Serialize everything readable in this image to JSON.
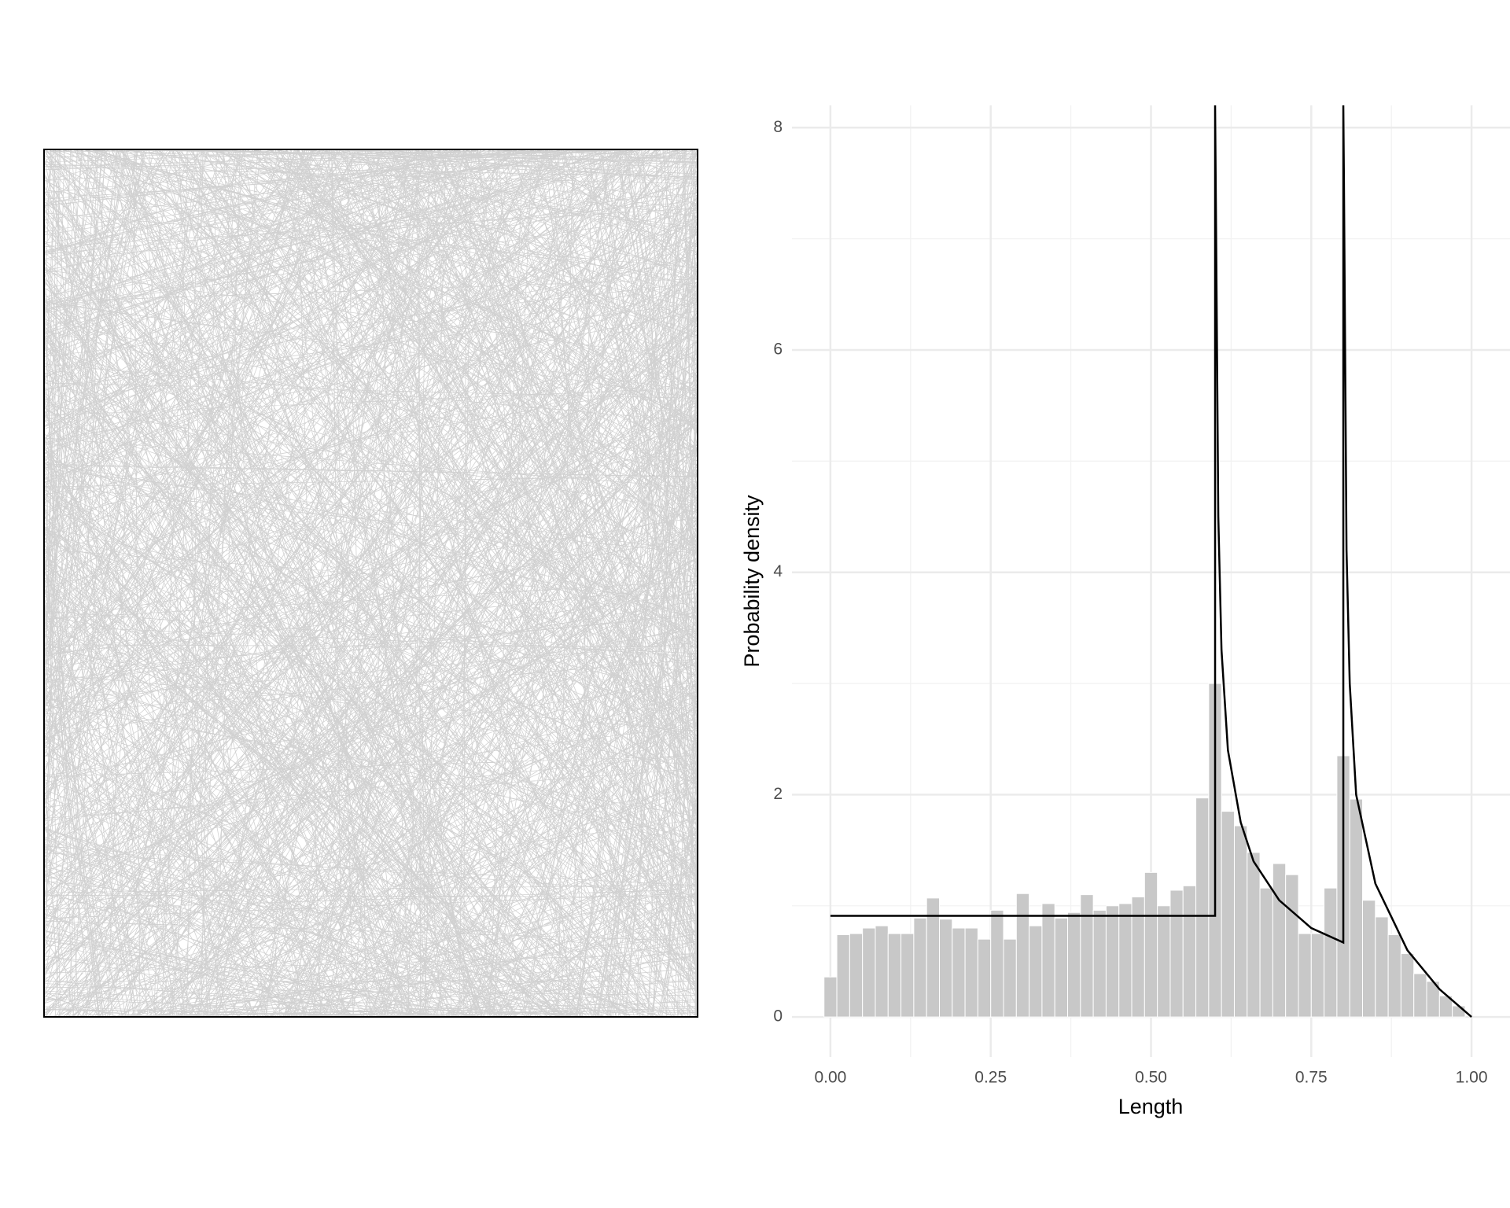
{
  "chart_data": {
    "type": "histogram",
    "xlabel": "Length",
    "ylabel": "Probability density",
    "bins": [
      -0.01,
      0.01,
      0.03,
      0.05,
      0.07,
      0.09,
      0.11,
      0.13,
      0.15,
      0.17,
      0.19,
      0.21,
      0.23,
      0.25,
      0.27,
      0.29,
      0.31,
      0.33,
      0.35,
      0.37,
      0.39,
      0.41,
      0.43,
      0.45,
      0.47,
      0.49,
      0.51,
      0.53,
      0.55,
      0.57,
      0.59,
      0.61,
      0.63,
      0.65,
      0.67,
      0.69,
      0.71,
      0.73,
      0.75,
      0.77,
      0.79,
      0.81,
      0.83,
      0.85,
      0.87,
      0.89,
      0.91,
      0.93,
      0.95,
      0.97,
      0.99
    ],
    "counts": [
      0.36,
      0.74,
      0.75,
      0.8,
      0.82,
      0.75,
      0.75,
      0.89,
      1.07,
      0.88,
      0.8,
      0.8,
      0.7,
      0.96,
      0.7,
      1.11,
      0.82,
      1.02,
      0.89,
      0.94,
      1.1,
      0.96,
      1.0,
      1.02,
      1.08,
      1.3,
      1.0,
      1.14,
      1.18,
      1.97,
      3.0,
      1.85,
      1.72,
      1.48,
      1.16,
      1.38,
      1.28,
      0.75,
      0.75,
      1.16,
      2.35,
      1.96,
      1.05,
      0.9,
      0.74,
      0.57,
      0.39,
      0.32,
      0.19,
      0.1
    ],
    "color": "#c8c8c8",
    "curve": {
      "color": "#000000",
      "x": [
        0,
        0.6,
        0.6,
        0.601,
        0.605,
        0.61,
        0.62,
        0.64,
        0.66,
        0.7,
        0.75,
        0.8,
        0.8,
        0.801,
        0.805,
        0.81,
        0.82,
        0.85,
        0.9,
        0.95,
        1.0
      ],
      "values": [
        0.91,
        0.91,
        8.2,
        7.5,
        4.5,
        3.3,
        2.4,
        1.75,
        1.4,
        1.05,
        0.8,
        0.67,
        8.2,
        7.5,
        4.2,
        3.0,
        2.0,
        1.2,
        0.6,
        0.25,
        0
      ]
    },
    "xlim": [
      -0.06,
      1.06
    ],
    "ylim": [
      -0.36,
      8.2
    ],
    "xticks": [
      {
        "value": 0,
        "label": "0.00"
      },
      {
        "value": 0.25,
        "label": "0.25"
      },
      {
        "value": 0.5,
        "label": "0.50"
      },
      {
        "value": 0.75,
        "label": "0.75"
      },
      {
        "value": 1,
        "label": "1.00"
      }
    ],
    "yticks": [
      0,
      2,
      4,
      6,
      8
    ],
    "xticks_minor": [
      0.125,
      0.375,
      0.625,
      0.875
    ],
    "yticks_minor": [
      1,
      3,
      5,
      7
    ],
    "grid": true
  }
}
